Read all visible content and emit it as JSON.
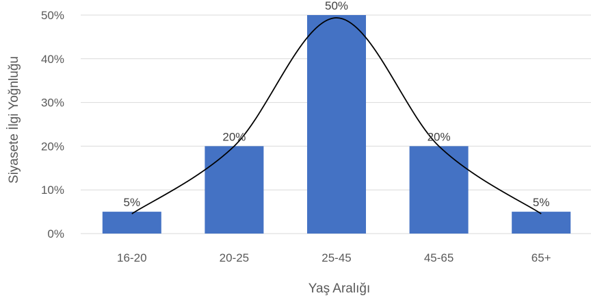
{
  "chart_data": {
    "type": "bar",
    "categories": [
      "16-20",
      "20-25",
      "25-45",
      "45-65",
      "65+"
    ],
    "values": [
      5,
      20,
      50,
      20,
      5
    ],
    "value_labels": [
      "5%",
      "20%",
      "50%",
      "20%",
      "5%"
    ],
    "unit": "%",
    "xlabel": "Yaş Aralığı",
    "ylabel": "Siyasete İlgi Yoğnluğu",
    "ylim": [
      0,
      50
    ],
    "yticks": [
      0,
      10,
      20,
      30,
      40,
      50
    ],
    "ytick_labels": [
      "0%",
      "10%",
      "20%",
      "30%",
      "40%",
      "50%"
    ],
    "grid": true,
    "legend": "none",
    "trend_curve": true,
    "colors": {
      "bar": "#4472C4",
      "curve": "#000000",
      "grid": "#D9D9D9"
    }
  }
}
